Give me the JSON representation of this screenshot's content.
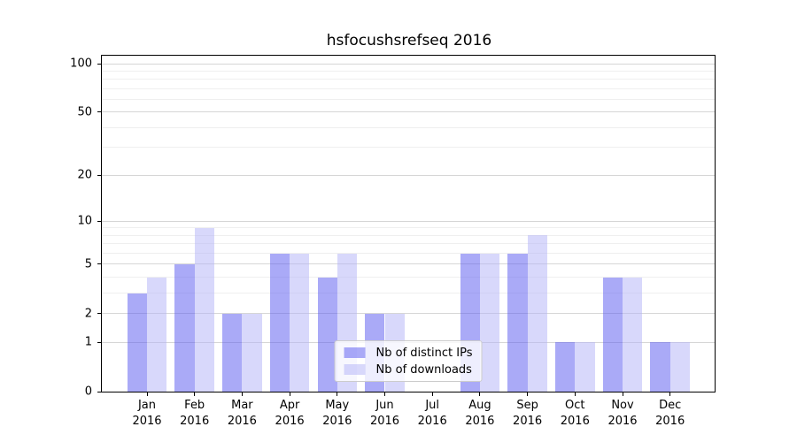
{
  "title": "hsfocushsrefseq 2016",
  "chart_data": {
    "type": "bar",
    "title": "hsfocushsrefseq 2016",
    "x_categories": [
      "Jan",
      "Feb",
      "Mar",
      "Apr",
      "May",
      "Jun",
      "Jul",
      "Aug",
      "Sep",
      "Oct",
      "Nov",
      "Dec"
    ],
    "x_year": "2016",
    "series": [
      {
        "name": "Nb of distinct IPs",
        "color": "rgba(85,85,240,0.5)",
        "values": [
          3,
          5,
          2,
          6,
          4,
          2,
          0,
          6,
          6,
          1,
          4,
          1
        ]
      },
      {
        "name": "Nb of downloads",
        "color": "rgba(178,178,248,0.5)",
        "values": [
          4,
          9,
          2,
          6,
          6,
          2,
          0,
          6,
          8,
          1,
          4,
          1
        ]
      }
    ],
    "y_scale": "log1p",
    "y_ticks": [
      100,
      50,
      20,
      10,
      5,
      2,
      1,
      0
    ],
    "y_minor_gridlines": [
      3,
      4,
      6,
      7,
      8,
      9,
      30,
      40,
      60,
      70,
      80,
      90
    ],
    "ylim_top": 112,
    "grid": true,
    "legend_position": "lower center"
  },
  "colors": {
    "bar_dark": "rgba(85,85,240,0.5)",
    "bar_light": "rgba(178,178,248,0.5)",
    "grid_major": "#d6d6d6",
    "grid_minor": "#efefef",
    "spine": "#000000",
    "legend_border": "#cccccc",
    "legend_background": "rgba(255,255,255,0.8)"
  }
}
